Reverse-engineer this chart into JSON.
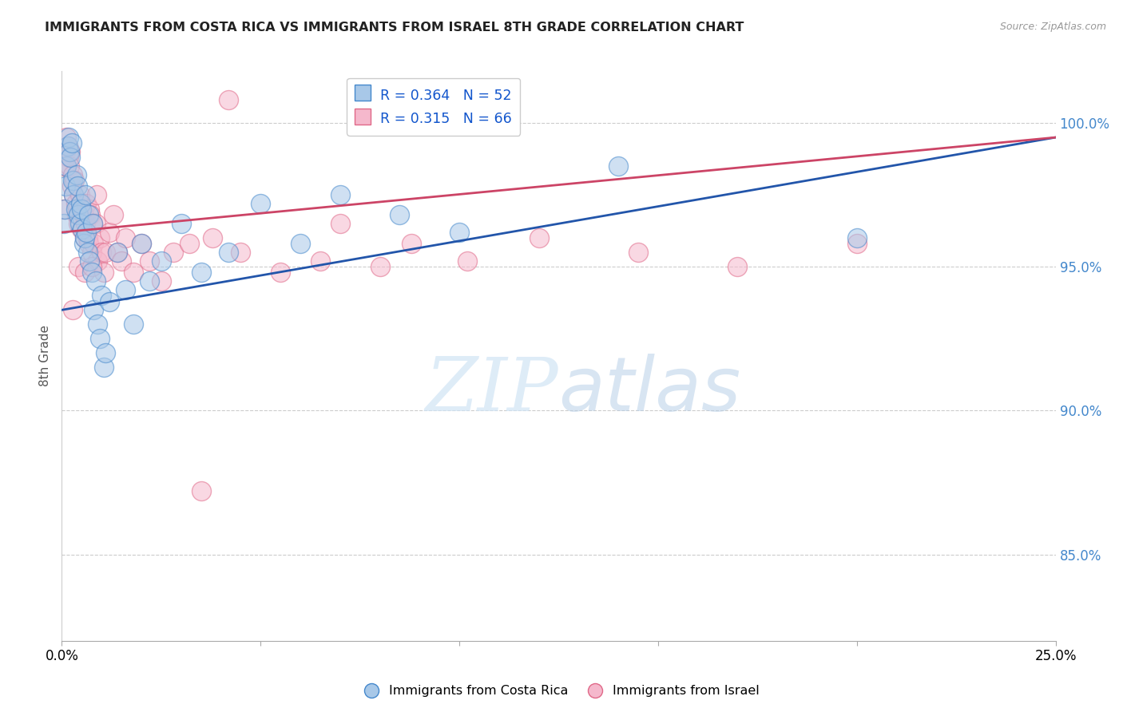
{
  "title": "IMMIGRANTS FROM COSTA RICA VS IMMIGRANTS FROM ISRAEL 8TH GRADE CORRELATION CHART",
  "source": "Source: ZipAtlas.com",
  "ylabel": "8th Grade",
  "xmin": 0.0,
  "xmax": 25.0,
  "ymin": 82.0,
  "ymax": 101.8,
  "yticks": [
    85.0,
    90.0,
    95.0,
    100.0
  ],
  "right_ytick_labels": [
    "85.0%",
    "90.0%",
    "95.0%",
    "100.0%"
  ],
  "costa_rica_R": 0.364,
  "costa_rica_N": 52,
  "israel_R": 0.315,
  "israel_N": 66,
  "costa_rica_color": "#a8c8e8",
  "israel_color": "#f5b8cc",
  "costa_rica_edge_color": "#4488cc",
  "israel_edge_color": "#e06888",
  "costa_rica_line_color": "#2255aa",
  "israel_line_color": "#cc4466",
  "legend_label_cr": "Immigrants from Costa Rica",
  "legend_label_il": "Immigrants from Israel",
  "watermark_zip": "ZIP",
  "watermark_atlas": "atlas",
  "costa_rica_x": [
    0.05,
    0.08,
    0.1,
    0.12,
    0.15,
    0.18,
    0.2,
    0.22,
    0.25,
    0.28,
    0.3,
    0.35,
    0.38,
    0.4,
    0.42,
    0.45,
    0.48,
    0.5,
    0.52,
    0.55,
    0.58,
    0.6,
    0.62,
    0.65,
    0.68,
    0.7,
    0.75,
    0.78,
    0.8,
    0.85,
    0.9,
    0.95,
    1.0,
    1.05,
    1.1,
    1.2,
    1.4,
    1.6,
    1.8,
    2.0,
    2.2,
    2.5,
    3.0,
    3.5,
    4.2,
    5.0,
    6.0,
    7.0,
    8.5,
    10.0,
    14.0,
    20.0
  ],
  "costa_rica_y": [
    96.5,
    97.0,
    97.8,
    98.5,
    99.2,
    99.5,
    99.0,
    98.8,
    99.3,
    98.0,
    97.5,
    97.0,
    98.2,
    97.8,
    96.8,
    96.5,
    97.2,
    97.0,
    96.3,
    95.8,
    96.0,
    97.5,
    96.2,
    95.5,
    96.8,
    95.2,
    94.8,
    96.5,
    93.5,
    94.5,
    93.0,
    92.5,
    94.0,
    91.5,
    92.0,
    93.8,
    95.5,
    94.2,
    93.0,
    95.8,
    94.5,
    95.2,
    96.5,
    94.8,
    95.5,
    97.2,
    95.8,
    97.5,
    96.8,
    96.2,
    98.5,
    96.0
  ],
  "israel_x": [
    0.05,
    0.08,
    0.1,
    0.12,
    0.15,
    0.18,
    0.2,
    0.22,
    0.25,
    0.28,
    0.3,
    0.32,
    0.35,
    0.38,
    0.4,
    0.42,
    0.45,
    0.48,
    0.5,
    0.55,
    0.58,
    0.6,
    0.62,
    0.65,
    0.68,
    0.7,
    0.72,
    0.75,
    0.78,
    0.8,
    0.85,
    0.88,
    0.9,
    0.95,
    1.0,
    1.05,
    1.1,
    1.2,
    1.3,
    1.4,
    1.5,
    1.6,
    1.8,
    2.0,
    2.2,
    2.5,
    2.8,
    3.2,
    3.8,
    4.5,
    5.5,
    6.5,
    7.0,
    8.0,
    8.8,
    10.2,
    12.0,
    14.5,
    17.0,
    20.0,
    0.28,
    0.42,
    0.58,
    0.75,
    3.5,
    4.2
  ],
  "israel_y": [
    97.0,
    98.5,
    99.0,
    99.5,
    99.2,
    98.8,
    98.5,
    99.0,
    97.8,
    98.2,
    97.5,
    98.0,
    97.2,
    96.8,
    97.0,
    96.5,
    97.5,
    97.2,
    96.3,
    96.8,
    96.0,
    96.5,
    97.2,
    96.0,
    95.8,
    97.0,
    96.8,
    95.5,
    96.5,
    95.8,
    96.5,
    97.5,
    95.2,
    96.0,
    95.5,
    94.8,
    95.5,
    96.2,
    96.8,
    95.5,
    95.2,
    96.0,
    94.8,
    95.8,
    95.2,
    94.5,
    95.5,
    95.8,
    96.0,
    95.5,
    94.8,
    95.2,
    96.5,
    95.0,
    95.8,
    95.2,
    96.0,
    95.5,
    95.0,
    95.8,
    93.5,
    95.0,
    94.8,
    95.0,
    87.2,
    100.8
  ],
  "trend_cr_x0": 0.0,
  "trend_cr_y0": 93.5,
  "trend_cr_x1": 25.0,
  "trend_cr_y1": 99.5,
  "trend_il_x0": 0.0,
  "trend_il_y0": 96.2,
  "trend_il_x1": 25.0,
  "trend_il_y1": 99.5
}
